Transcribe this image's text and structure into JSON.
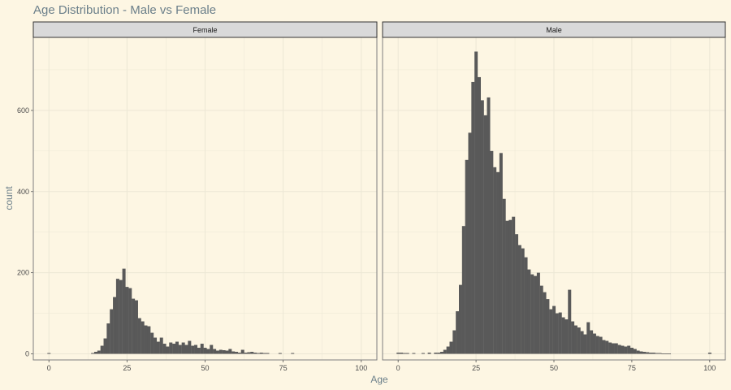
{
  "chart_data": {
    "type": "histogram",
    "title": "Age Distribution - Male vs Female",
    "xlabel": "Age",
    "ylabel": "count",
    "xlim": [
      -5,
      105
    ],
    "ylim": [
      -15,
      780
    ],
    "x_ticks": [
      0,
      25,
      50,
      75,
      100
    ],
    "y_ticks": [
      0,
      200,
      400,
      600
    ],
    "bin_width": 1,
    "grid": true,
    "bar_color": "#595959",
    "panel_background": "#fdf6e3",
    "strip_background": "#d9d9d9",
    "grid_color": "#ece7d5",
    "panels": [
      {
        "label": "Female",
        "bins": [
          [
            0,
            2
          ],
          [
            14,
            2
          ],
          [
            15,
            5
          ],
          [
            16,
            8
          ],
          [
            17,
            20
          ],
          [
            18,
            38
          ],
          [
            19,
            75
          ],
          [
            20,
            110
          ],
          [
            21,
            140
          ],
          [
            22,
            185
          ],
          [
            23,
            182
          ],
          [
            24,
            210
          ],
          [
            25,
            165
          ],
          [
            26,
            162
          ],
          [
            27,
            136
          ],
          [
            28,
            132
          ],
          [
            29,
            88
          ],
          [
            30,
            80
          ],
          [
            31,
            70
          ],
          [
            32,
            68
          ],
          [
            33,
            52
          ],
          [
            34,
            40
          ],
          [
            35,
            30
          ],
          [
            36,
            40
          ],
          [
            37,
            25
          ],
          [
            38,
            18
          ],
          [
            39,
            28
          ],
          [
            40,
            25
          ],
          [
            41,
            30
          ],
          [
            42,
            22
          ],
          [
            43,
            28
          ],
          [
            44,
            22
          ],
          [
            45,
            32
          ],
          [
            46,
            20
          ],
          [
            47,
            22
          ],
          [
            48,
            15
          ],
          [
            49,
            25
          ],
          [
            50,
            15
          ],
          [
            51,
            12
          ],
          [
            52,
            22
          ],
          [
            53,
            12
          ],
          [
            54,
            8
          ],
          [
            55,
            10
          ],
          [
            56,
            9
          ],
          [
            57,
            8
          ],
          [
            58,
            12
          ],
          [
            59,
            6
          ],
          [
            60,
            5
          ],
          [
            61,
            3
          ],
          [
            62,
            10
          ],
          [
            63,
            3
          ],
          [
            64,
            4
          ],
          [
            65,
            5
          ],
          [
            66,
            3
          ],
          [
            67,
            2
          ],
          [
            68,
            3
          ],
          [
            69,
            2
          ],
          [
            70,
            2
          ],
          [
            74,
            2
          ],
          [
            78,
            2
          ]
        ]
      },
      {
        "label": "Male",
        "bins": [
          [
            0,
            3
          ],
          [
            1,
            3
          ],
          [
            2,
            2
          ],
          [
            3,
            2
          ],
          [
            5,
            2
          ],
          [
            8,
            2
          ],
          [
            10,
            3
          ],
          [
            12,
            3
          ],
          [
            13,
            3
          ],
          [
            14,
            5
          ],
          [
            15,
            10
          ],
          [
            16,
            18
          ],
          [
            17,
            30
          ],
          [
            18,
            58
          ],
          [
            19,
            105
          ],
          [
            20,
            170
          ],
          [
            21,
            315
          ],
          [
            22,
            478
          ],
          [
            23,
            545
          ],
          [
            24,
            670
          ],
          [
            25,
            745
          ],
          [
            26,
            682
          ],
          [
            27,
            625
          ],
          [
            28,
            588
          ],
          [
            29,
            632
          ],
          [
            30,
            500
          ],
          [
            31,
            460
          ],
          [
            32,
            448
          ],
          [
            33,
            495
          ],
          [
            34,
            382
          ],
          [
            35,
            328
          ],
          [
            36,
            330
          ],
          [
            37,
            338
          ],
          [
            38,
            295
          ],
          [
            39,
            268
          ],
          [
            40,
            260
          ],
          [
            41,
            238
          ],
          [
            42,
            208
          ],
          [
            43,
            196
          ],
          [
            44,
            192
          ],
          [
            45,
            200
          ],
          [
            46,
            168
          ],
          [
            47,
            152
          ],
          [
            48,
            135
          ],
          [
            49,
            110
          ],
          [
            50,
            118
          ],
          [
            51,
            100
          ],
          [
            52,
            102
          ],
          [
            53,
            90
          ],
          [
            54,
            85
          ],
          [
            55,
            158
          ],
          [
            56,
            80
          ],
          [
            57,
            70
          ],
          [
            58,
            65
          ],
          [
            59,
            56
          ],
          [
            60,
            48
          ],
          [
            61,
            78
          ],
          [
            62,
            58
          ],
          [
            63,
            50
          ],
          [
            64,
            44
          ],
          [
            65,
            42
          ],
          [
            66,
            34
          ],
          [
            67,
            32
          ],
          [
            68,
            28
          ],
          [
            69,
            26
          ],
          [
            70,
            26
          ],
          [
            71,
            22
          ],
          [
            72,
            20
          ],
          [
            73,
            18
          ],
          [
            74,
            20
          ],
          [
            75,
            15
          ],
          [
            76,
            12
          ],
          [
            77,
            8
          ],
          [
            78,
            6
          ],
          [
            79,
            5
          ],
          [
            80,
            4
          ],
          [
            81,
            3
          ],
          [
            82,
            3
          ],
          [
            83,
            2
          ],
          [
            84,
            2
          ],
          [
            85,
            1
          ],
          [
            86,
            1
          ],
          [
            87,
            1
          ],
          [
            100,
            3
          ]
        ]
      }
    ]
  }
}
